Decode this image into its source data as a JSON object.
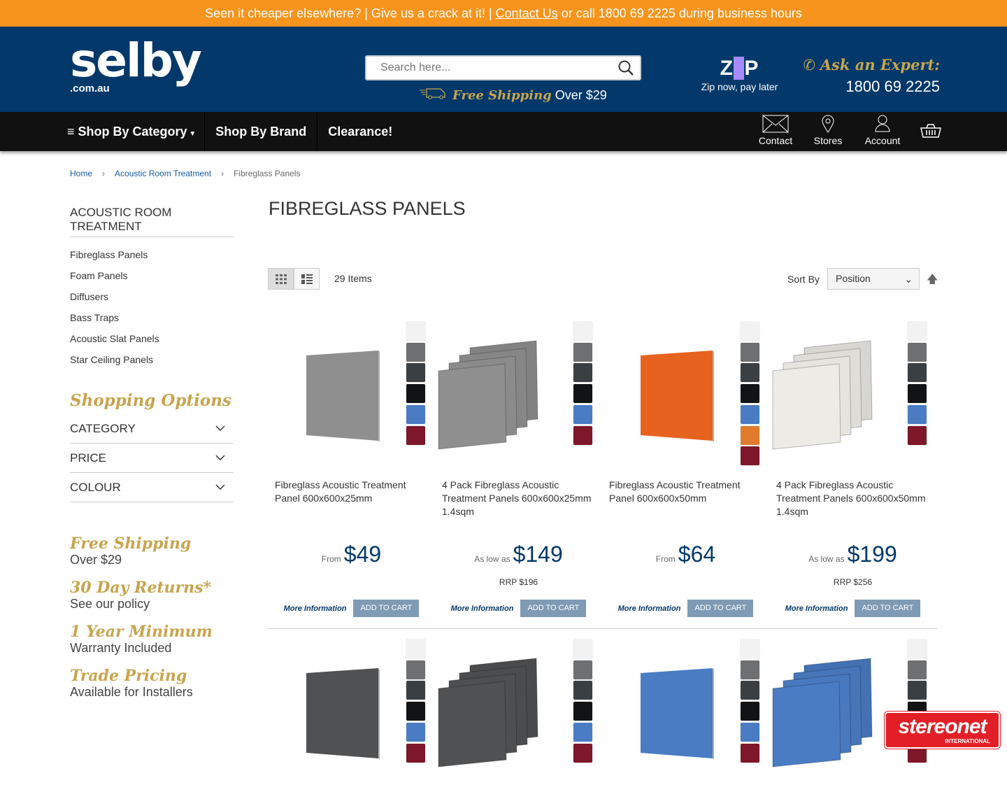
{
  "promo": {
    "text1": "Seen it cheaper elsewhere? | Give us a crack at it! | ",
    "link": "Contact Us",
    "text2": " or call 1800 69 2225 during business hours"
  },
  "header": {
    "logo_main": "selby",
    "logo_sub": ".com.au",
    "search_placeholder": "Search here...",
    "ship_bold": "Free Shipping",
    "ship_rest": " Over $29",
    "zip_logo": "zip",
    "zip_tag": "Zip now, pay later",
    "expert_title": "Ask an Expert:",
    "expert_phone": "1800 69 2225"
  },
  "nav": {
    "category": "Shop By Category",
    "brand": "Shop By Brand",
    "clearance": "Clearance!",
    "contact": "Contact",
    "stores": "Stores",
    "account": "Account"
  },
  "breadcrumb": [
    "Home",
    "Acoustic Room Treatment",
    "Fibreglass Panels"
  ],
  "sidebar": {
    "heading": "ACOUSTIC ROOM TREATMENT",
    "items": [
      "Fibreglass Panels",
      "Foam Panels",
      "Diffusers",
      "Bass Traps",
      "Acoustic Slat Panels",
      "Star Ceiling Panels"
    ],
    "shopping_options": "Shopping Options",
    "filters": [
      "CATEGORY",
      "PRICE",
      "COLOUR"
    ],
    "perks": [
      {
        "title": "Free Shipping",
        "sub": "Over $29"
      },
      {
        "title": "30 Day Returns*",
        "sub": "See our policy"
      },
      {
        "title": "1 Year Minimum",
        "sub": "Warranty Included"
      },
      {
        "title": "Trade Pricing",
        "sub": "Available for Installers"
      }
    ]
  },
  "main": {
    "title": "FIBREGLASS PANELS",
    "count": "29 Items",
    "sort_label": "Sort By",
    "sort_value": "Position",
    "more_label": "More Information",
    "cart_label": "ADD TO CART"
  },
  "products": [
    {
      "name": "Fibreglass Acoustic Treatment Panel 600x600x25mm",
      "price_prefix": "From",
      "price": "$49",
      "rrp": "",
      "panel": "#8f8f8f",
      "pack": false,
      "swatches": [
        "#f2f2f2",
        "#6d6f71",
        "#3a3f44",
        "#111315",
        "#4a7cc4",
        "#7d1729"
      ]
    },
    {
      "name": "4 Pack Fibreglass Acoustic Treatment Panels 600x600x25mm 1.4sqm",
      "price_prefix": "As low as",
      "price": "$149",
      "rrp": "RRP $196",
      "panel": "#8f8f8f",
      "pack": true,
      "swatches": [
        "#f2f2f2",
        "#6d6f71",
        "#3a3f44",
        "#111315",
        "#4a7cc4",
        "#7d1729"
      ]
    },
    {
      "name": "Fibreglass Acoustic Treatment Panel 600x600x50mm",
      "price_prefix": "From",
      "price": "$64",
      "rrp": "",
      "panel": "#e8621f",
      "pack": false,
      "swatches": [
        "#f2f2f2",
        "#6d6f71",
        "#3a3f44",
        "#111315",
        "#4a7cc4",
        "#e07a2c",
        "#7d1729"
      ]
    },
    {
      "name": "4 Pack Fibreglass Acoustic Treatment Panels 600x600x50mm 1.4sqm",
      "price_prefix": "As low as",
      "price": "$199",
      "rrp": "RRP $256",
      "panel": "#ecebe6",
      "pack": true,
      "swatches": [
        "#f2f2f2",
        "#6d6f71",
        "#3a3f44",
        "#111315",
        "#4a7cc4",
        "#7d1729"
      ]
    },
    {
      "name": "",
      "price_prefix": "",
      "price": "",
      "rrp": "",
      "panel": "#505152",
      "pack": false,
      "swatches": [
        "#f2f2f2",
        "#6d6f71",
        "#3a3f44",
        "#111315",
        "#4a7cc4",
        "#7d1729"
      ]
    },
    {
      "name": "",
      "price_prefix": "",
      "price": "",
      "rrp": "",
      "panel": "#505152",
      "pack": true,
      "swatches": [
        "#f2f2f2",
        "#6d6f71",
        "#3a3f44",
        "#111315",
        "#4a7cc4",
        "#7d1729"
      ]
    },
    {
      "name": "",
      "price_prefix": "",
      "price": "",
      "rrp": "",
      "panel": "#4a7cc4",
      "pack": false,
      "swatches": [
        "#f2f2f2",
        "#6d6f71",
        "#3a3f44",
        "#111315",
        "#4a7cc4",
        "#7d1729"
      ]
    },
    {
      "name": "",
      "price_prefix": "",
      "price": "",
      "rrp": "",
      "panel": "#4a7cc4",
      "pack": true,
      "swatches": [
        "#f2f2f2",
        "#6d6f71",
        "#3a3f44",
        "#111315",
        "#4a7cc4",
        "#7d1729"
      ]
    }
  ],
  "badge": {
    "brand": "stereonet",
    "sub": "INTERNATIONAL"
  }
}
